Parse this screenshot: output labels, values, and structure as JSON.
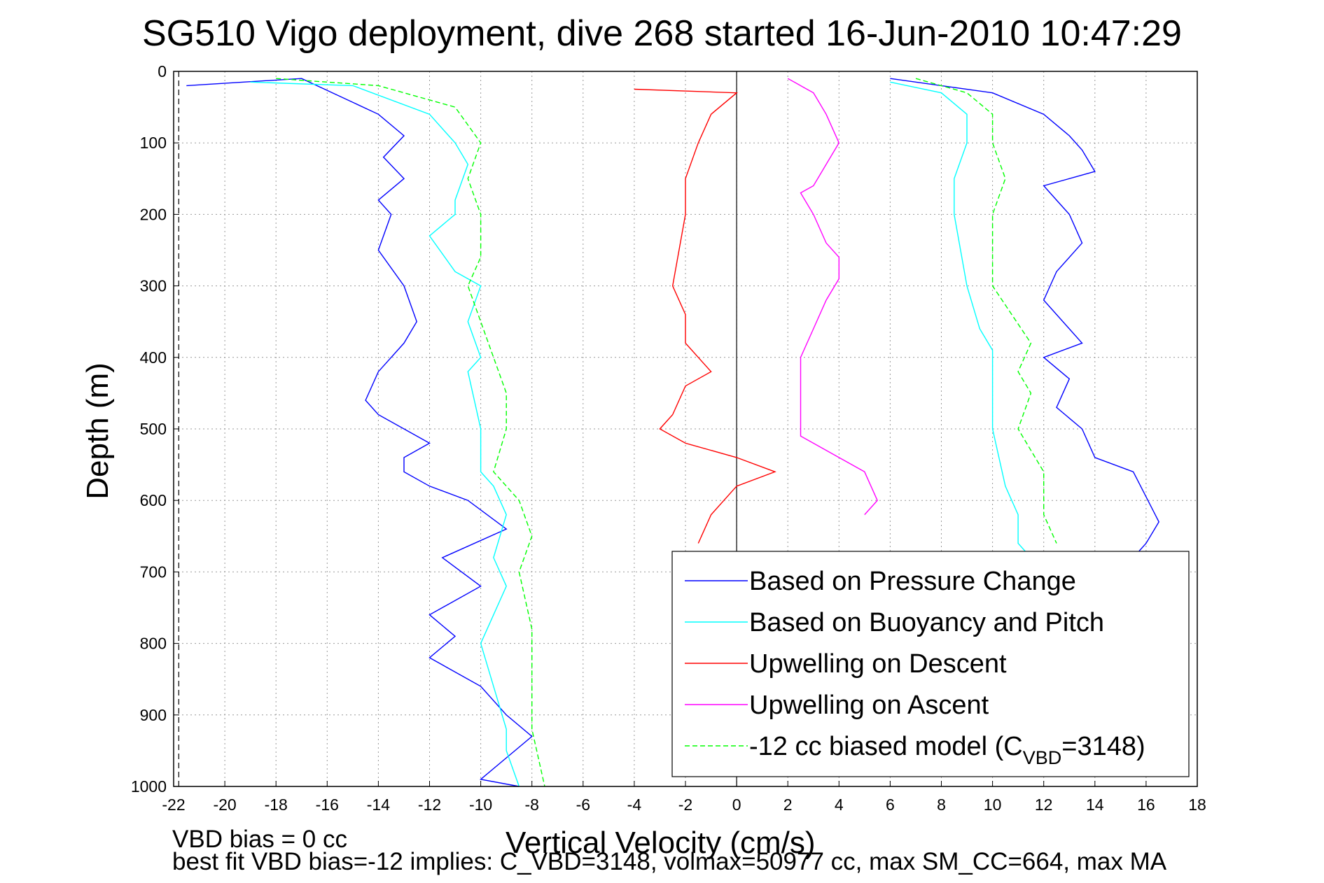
{
  "chart_data": {
    "type": "line",
    "title": "SG510 Vigo deployment, dive 268 started 16-Jun-2010 10:47:29",
    "xlabel": "Vertical Velocity (cm/s)",
    "ylabel": "Depth (m)",
    "xlim": [
      -22,
      18
    ],
    "ylim": [
      0,
      1000
    ],
    "y_reversed": true,
    "grid": true,
    "xticks": [
      -22,
      -20,
      -18,
      -16,
      -14,
      -12,
      -10,
      -8,
      -6,
      -4,
      -2,
      0,
      2,
      4,
      6,
      8,
      10,
      12,
      14,
      16,
      18
    ],
    "yticks": [
      0,
      100,
      200,
      300,
      400,
      500,
      600,
      700,
      800,
      900,
      1000
    ],
    "legend_position": "bottom-right",
    "reference_lines": [
      {
        "x": 0,
        "style": "solid",
        "color": "#000000"
      },
      {
        "x": -21.8,
        "style": "dashed",
        "color": "#000000"
      }
    ],
    "series": [
      {
        "name": "Based on Pressure Change",
        "color": "#0000ff",
        "style": "solid",
        "x": [
          -21.5,
          -17,
          -14,
          -13,
          -13.8,
          -13,
          -14,
          -13.5,
          -14,
          -13,
          -12.5,
          -13,
          -14,
          -14.5,
          -14,
          -12,
          -13,
          -13,
          -12,
          -10.5,
          -9,
          -11.5,
          -10,
          -12,
          -11,
          -12,
          -10,
          -9,
          -8,
          -9,
          -10,
          -8.5
        ],
        "y": [
          20,
          10,
          60,
          90,
          120,
          150,
          180,
          200,
          250,
          300,
          350,
          380,
          420,
          460,
          480,
          520,
          540,
          560,
          580,
          600,
          640,
          680,
          720,
          760,
          790,
          820,
          860,
          900,
          930,
          960,
          990,
          1000
        ],
        "descent_profile": true
      },
      {
        "name": "Based on Pressure Change",
        "color": "#0000ff",
        "style": "solid",
        "x": [
          6,
          10,
          12,
          13,
          13.5,
          14,
          12,
          12.5,
          13,
          13.5,
          12.5,
          12,
          13.5,
          12,
          13,
          12.5,
          13.5,
          14,
          15.5,
          16.5,
          16,
          15.5
        ],
        "y": [
          10,
          30,
          60,
          90,
          110,
          140,
          160,
          180,
          200,
          240,
          280,
          320,
          380,
          400,
          430,
          470,
          500,
          540,
          560,
          630,
          660,
          680
        ]
      },
      {
        "name": "Based on Buoyancy and Pitch",
        "color": "#00ffff",
        "style": "solid",
        "x": [
          -19,
          -15,
          -12,
          -11,
          -10.5,
          -11,
          -11,
          -12,
          -11,
          -10,
          -10.5,
          -10,
          -10.5,
          -10,
          -10,
          -9.5,
          -9,
          -9.5,
          -9,
          -10,
          -9.5,
          -9,
          -9,
          -8.5
        ],
        "y": [
          15,
          20,
          60,
          100,
          130,
          180,
          200,
          230,
          280,
          300,
          350,
          400,
          420,
          500,
          560,
          580,
          620,
          680,
          720,
          800,
          860,
          920,
          950,
          1000
        ]
      },
      {
        "name": "Based on Buoyancy and Pitch",
        "color": "#00ffff",
        "style": "solid",
        "x": [
          6,
          8,
          9,
          9,
          8.5,
          8.5,
          9,
          9.5,
          10,
          10,
          10,
          10.5,
          11,
          11,
          11.5
        ],
        "y": [
          15,
          30,
          60,
          100,
          150,
          200,
          300,
          360,
          390,
          420,
          500,
          580,
          620,
          660,
          680
        ]
      },
      {
        "name": "Upwelling on Descent",
        "color": "#ff0000",
        "style": "solid",
        "x": [
          -4,
          0,
          -1,
          -1.5,
          -2,
          -2,
          -2.5,
          -2,
          -2,
          -1.5,
          -1,
          -2,
          -2.5,
          -3,
          -2,
          0,
          1.5,
          0,
          -1,
          -1.5
        ],
        "y": [
          25,
          30,
          60,
          100,
          150,
          200,
          300,
          340,
          380,
          400,
          420,
          440,
          480,
          500,
          520,
          540,
          560,
          580,
          620,
          660
        ]
      },
      {
        "name": "Upwelling on Ascent",
        "color": "#ff00ff",
        "style": "solid",
        "x": [
          2,
          3,
          3.5,
          4,
          3.5,
          3,
          2.5,
          3,
          3.5,
          4,
          4,
          3.5,
          3,
          2.5,
          2.5,
          2.5,
          4,
          5,
          5.5,
          5
        ],
        "y": [
          10,
          30,
          60,
          100,
          130,
          160,
          170,
          200,
          240,
          260,
          290,
          320,
          360,
          400,
          460,
          510,
          540,
          560,
          600,
          620
        ]
      },
      {
        "name": "-12 cc biased model (C_VBD=3148)",
        "color": "#00ff00",
        "style": "dashed",
        "x": [
          -18,
          -14,
          -11,
          -10,
          -10.5,
          -10,
          -10,
          -10.5,
          -10,
          -9.5,
          -9,
          -9,
          -9.5,
          -8.5,
          -8,
          -8.5,
          -8,
          -8,
          -8,
          -7.5
        ],
        "y": [
          10,
          20,
          50,
          100,
          150,
          200,
          260,
          300,
          350,
          400,
          450,
          500,
          560,
          600,
          650,
          700,
          780,
          850,
          920,
          1000
        ]
      },
      {
        "name": "-12 cc biased model (C_VBD=3148)",
        "color": "#00ff00",
        "style": "dashed",
        "x": [
          7,
          9,
          10,
          10,
          10.5,
          10,
          10,
          11.5,
          11,
          11.5,
          11,
          12,
          12,
          12.5
        ],
        "y": [
          10,
          30,
          60,
          100,
          150,
          200,
          300,
          380,
          420,
          450,
          500,
          560,
          620,
          660
        ]
      }
    ],
    "legend_entries": [
      {
        "label": "Based on Pressure Change",
        "color": "#0000ff",
        "style": "solid"
      },
      {
        "label": "Based on Buoyancy and Pitch",
        "color": "#00ffff",
        "style": "solid"
      },
      {
        "label": "Upwelling on Descent",
        "color": "#ff0000",
        "style": "solid"
      },
      {
        "label": "Upwelling on Ascent",
        "color": "#ff00ff",
        "style": "solid"
      },
      {
        "label": "-12 cc biased model (C",
        "sub": "VBD",
        "tail": "=3148)",
        "color": "#00ff00",
        "style": "dashed"
      }
    ],
    "notes": [
      "VBD bias = 0 cc",
      "best fit VBD bias=-12 implies: C_VBD=3148, volmax=50977 cc, max SM_CC=664, max MA"
    ]
  }
}
